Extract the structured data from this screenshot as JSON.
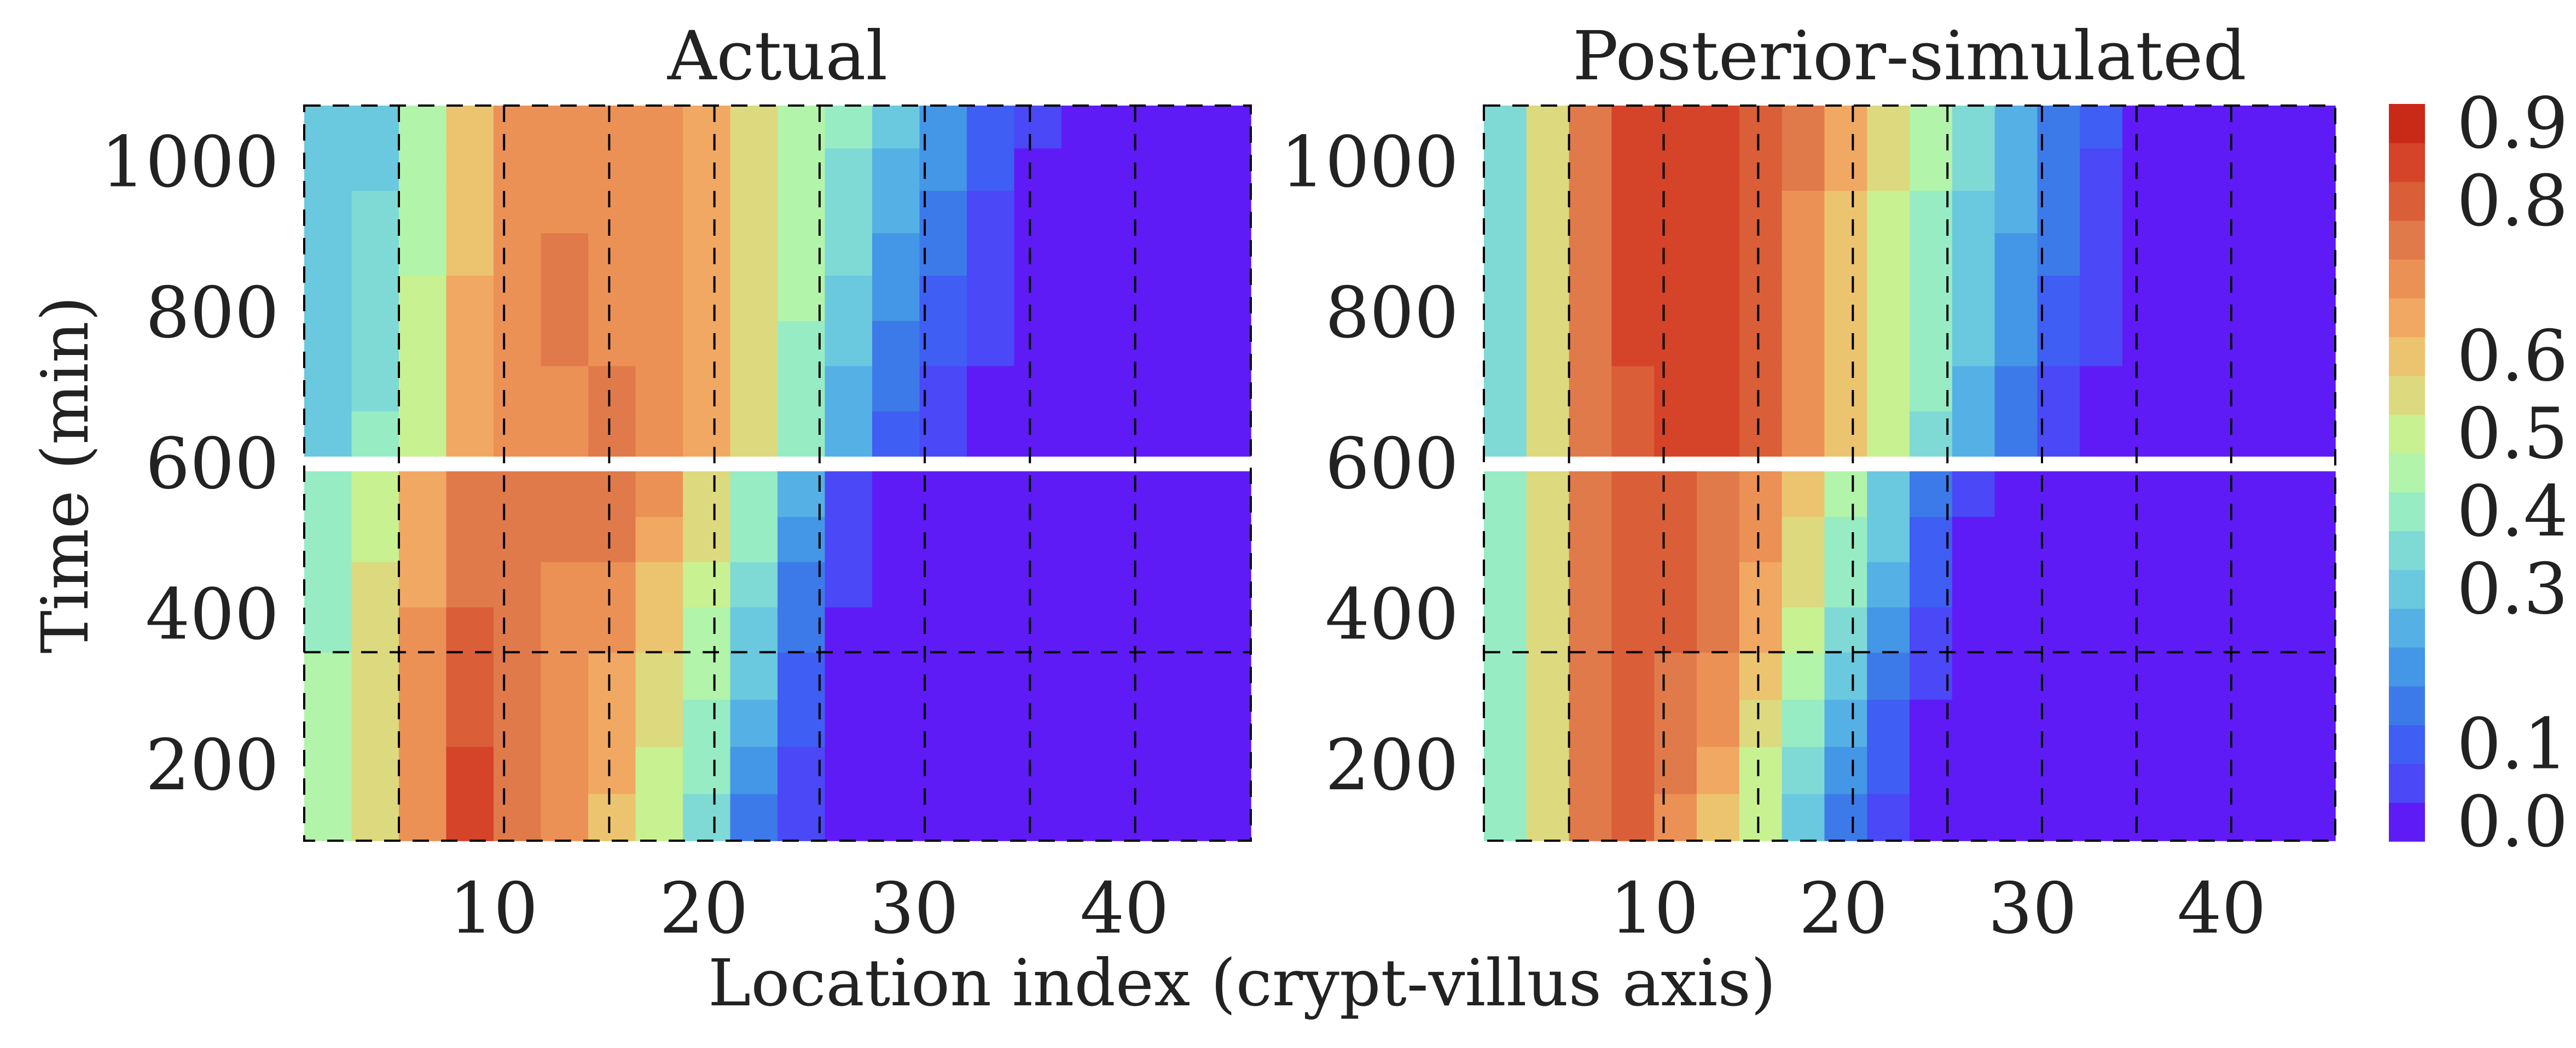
{
  "chart_data": [
    {
      "type": "heatmap",
      "title": "Actual",
      "xlabel": "Location index (crypt-villus axis)",
      "ylabel": "Time (min)",
      "xlim": [
        1,
        46
      ],
      "ylim": [
        100,
        1075
      ],
      "x_ticks": [
        10,
        20,
        30,
        40
      ],
      "y_ticks": [
        200,
        400,
        600,
        800,
        1000
      ],
      "dashed_x": [
        5.5,
        10.5,
        15.5,
        20.5,
        25.5,
        30.5,
        35.5,
        40.5
      ],
      "dashed_y": [
        350
      ],
      "gap_time_range": [
        590,
        610
      ],
      "rows": [
        {
          "time": 100,
          "values": [
            0.5,
            0.6,
            0.72,
            0.88,
            0.78,
            0.7,
            0.62,
            0.5,
            0.36,
            0.18,
            0.04,
            0.0,
            0.0,
            0.0,
            0.0,
            0.0,
            0.0,
            0.0,
            0.0,
            0.0
          ]
        },
        {
          "time": 350,
          "values": [
            0.45,
            0.58,
            0.72,
            0.82,
            0.75,
            0.72,
            0.7,
            0.6,
            0.48,
            0.32,
            0.14,
            0.02,
            0.0,
            0.0,
            0.0,
            0.0,
            0.0,
            0.0,
            0.0,
            0.0
          ]
        },
        {
          "time": 590,
          "values": [
            0.4,
            0.52,
            0.65,
            0.75,
            0.77,
            0.78,
            0.78,
            0.72,
            0.6,
            0.45,
            0.28,
            0.1,
            0.02,
            0.0,
            0.0,
            0.0,
            0.0,
            0.0,
            0.0,
            0.0
          ]
        },
        {
          "time": 610,
          "values": [
            0.32,
            0.42,
            0.55,
            0.68,
            0.72,
            0.74,
            0.76,
            0.7,
            0.68,
            0.55,
            0.4,
            0.25,
            0.12,
            0.05,
            0.02,
            0.0,
            0.0,
            0.0,
            0.0,
            0.0
          ]
        },
        {
          "time": 850,
          "values": [
            0.3,
            0.36,
            0.5,
            0.65,
            0.72,
            0.76,
            0.74,
            0.72,
            0.7,
            0.58,
            0.46,
            0.34,
            0.22,
            0.14,
            0.07,
            0.02,
            0.0,
            0.0,
            0.0,
            0.0
          ]
        },
        {
          "time": 1075,
          "values": [
            0.3,
            0.34,
            0.48,
            0.62,
            0.72,
            0.72,
            0.72,
            0.72,
            0.68,
            0.6,
            0.5,
            0.42,
            0.34,
            0.24,
            0.14,
            0.06,
            0.0,
            0.0,
            0.0,
            0.0
          ]
        }
      ]
    },
    {
      "type": "heatmap",
      "title": "Posterior-simulated",
      "xlabel": "Location index (crypt-villus axis)",
      "ylabel": "",
      "xlim": [
        1,
        46
      ],
      "ylim": [
        100,
        1075
      ],
      "x_ticks": [
        10,
        20,
        30,
        40
      ],
      "y_ticks": [
        200,
        400,
        600,
        800,
        1000
      ],
      "dashed_x": [
        5.5,
        10.5,
        15.5,
        20.5,
        25.5,
        30.5,
        35.5,
        40.5
      ],
      "dashed_y": [
        350
      ],
      "gap_time_range": [
        590,
        610
      ],
      "rows": [
        {
          "time": 100,
          "values": [
            0.45,
            0.58,
            0.78,
            0.8,
            0.72,
            0.62,
            0.48,
            0.3,
            0.14,
            0.04,
            0.0,
            0.0,
            0.0,
            0.0,
            0.0,
            0.0,
            0.0,
            0.0,
            0.0,
            0.0
          ]
        },
        {
          "time": 350,
          "values": [
            0.42,
            0.58,
            0.76,
            0.8,
            0.8,
            0.76,
            0.66,
            0.52,
            0.36,
            0.2,
            0.06,
            0.0,
            0.0,
            0.0,
            0.0,
            0.0,
            0.0,
            0.0,
            0.0,
            0.0
          ]
        },
        {
          "time": 590,
          "values": [
            0.4,
            0.58,
            0.76,
            0.81,
            0.82,
            0.8,
            0.74,
            0.64,
            0.5,
            0.36,
            0.2,
            0.06,
            0.0,
            0.0,
            0.0,
            0.0,
            0.0,
            0.0,
            0.0,
            0.0
          ]
        },
        {
          "time": 610,
          "values": [
            0.4,
            0.58,
            0.76,
            0.84,
            0.86,
            0.85,
            0.8,
            0.72,
            0.62,
            0.5,
            0.38,
            0.26,
            0.14,
            0.06,
            0.0,
            0.0,
            0.0,
            0.0,
            0.0,
            0.0
          ]
        },
        {
          "time": 850,
          "values": [
            0.38,
            0.58,
            0.76,
            0.86,
            0.88,
            0.86,
            0.82,
            0.74,
            0.64,
            0.54,
            0.44,
            0.34,
            0.24,
            0.16,
            0.08,
            0.02,
            0.0,
            0.0,
            0.0,
            0.0
          ]
        },
        {
          "time": 1075,
          "values": [
            0.36,
            0.58,
            0.76,
            0.87,
            0.89,
            0.87,
            0.83,
            0.76,
            0.66,
            0.56,
            0.46,
            0.36,
            0.27,
            0.19,
            0.11,
            0.04,
            0.0,
            0.0,
            0.0,
            0.0
          ]
        }
      ]
    }
  ],
  "colorbar": {
    "levels": [
      0.0,
      0.05,
      0.1,
      0.15,
      0.2,
      0.25,
      0.3,
      0.35,
      0.4,
      0.45,
      0.5,
      0.55,
      0.6,
      0.65,
      0.7,
      0.75,
      0.8,
      0.85,
      0.9
    ],
    "tick_labels": [
      "0.9",
      "0.8",
      "0.6",
      "0.5",
      "0.4",
      "0.3",
      "0.1",
      "0.0"
    ],
    "tick_values": [
      0.9,
      0.8,
      0.6,
      0.5,
      0.4,
      0.3,
      0.1,
      0.0
    ],
    "colors": [
      "#5f1bf5",
      "#4a48f7",
      "#3f5ef3",
      "#3d7ae9",
      "#4496e6",
      "#55b0e6",
      "#6ac8df",
      "#7fdad6",
      "#97ecc4",
      "#b2f4aa",
      "#c8f192",
      "#dcd97f",
      "#ecc46f",
      "#f1a862",
      "#eb9155",
      "#e07a4a",
      "#da5e37",
      "#d54329",
      "#c92a18"
    ]
  }
}
